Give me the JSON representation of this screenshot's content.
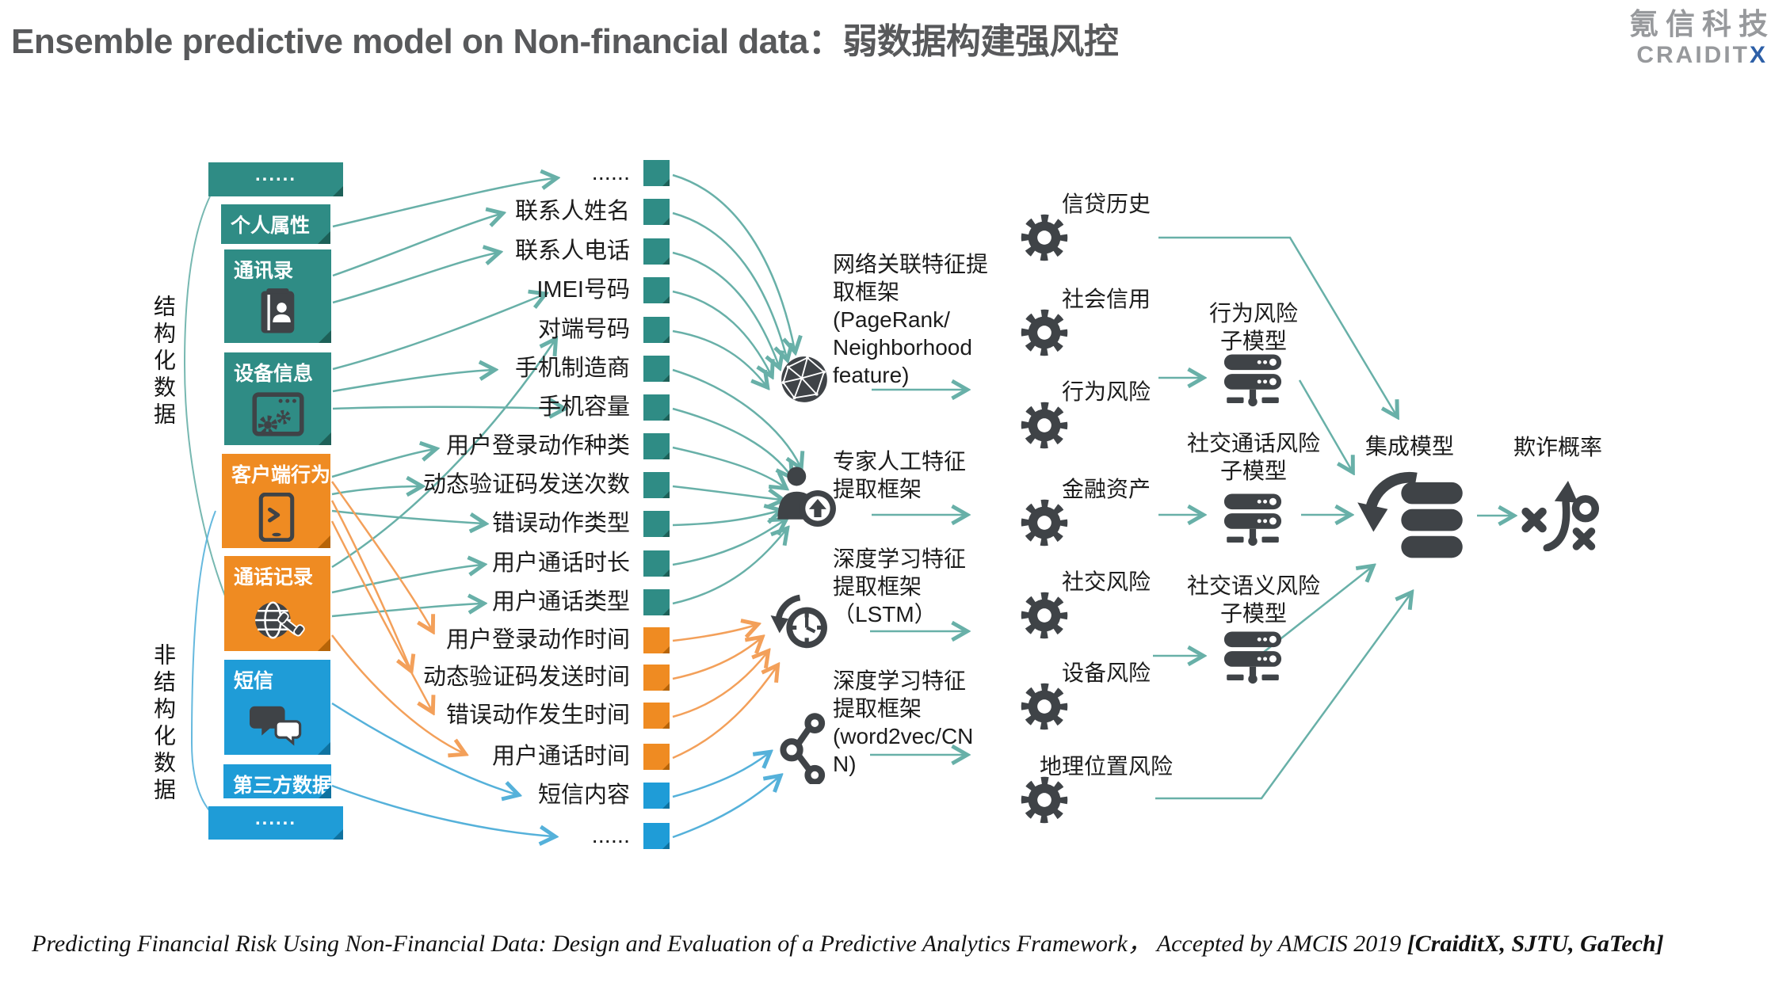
{
  "palette": {
    "teal": "#2f8c85",
    "orange": "#ef8b22",
    "blue": "#1f9cd7",
    "tealArrow": "#68b0a8",
    "orangeArrow": "#f3a05a",
    "blueArrow": "#55b1da",
    "icon_dark": "#3f4347",
    "title_gray": "#58595b",
    "logo_gray": "#97999c",
    "logo_blue": "#2d5fa7"
  },
  "header": {
    "title": "Ensemble predictive model on Non-financial data：弱数据构建强风控",
    "logo_cn": "氪信科技",
    "logo_en_prefix": "CRAIDIT",
    "logo_en_x": "X"
  },
  "groups": [
    {
      "label": "结构化数据"
    },
    {
      "label": "非结构化数据"
    }
  ],
  "sources": [
    {
      "label": "......",
      "color": "teal",
      "icon": null
    },
    {
      "label": "个人属性",
      "color": "teal",
      "icon": null
    },
    {
      "label": "通讯录",
      "color": "teal",
      "icon": "address-book"
    },
    {
      "label": "设备信息",
      "color": "teal",
      "icon": "device-window"
    },
    {
      "label": "客户端行为",
      "color": "orange",
      "icon": "tablet"
    },
    {
      "label": "通话记录",
      "color": "orange",
      "icon": "globe-phone"
    },
    {
      "label": "短信",
      "color": "blue",
      "icon": "chat"
    },
    {
      "label": "第三方数据",
      "color": "blue",
      "icon": null
    },
    {
      "label": "......",
      "color": "blue",
      "icon": null
    }
  ],
  "features": [
    {
      "label": "......",
      "color": "teal"
    },
    {
      "label": "联系人姓名",
      "color": "teal"
    },
    {
      "label": "联系人电话",
      "color": "teal"
    },
    {
      "label": "IMEI号码",
      "color": "teal"
    },
    {
      "label": "对端号码",
      "color": "teal"
    },
    {
      "label": "手机制造商",
      "color": "teal"
    },
    {
      "label": "手机容量",
      "color": "teal"
    },
    {
      "label": "用户登录动作种类",
      "color": "teal"
    },
    {
      "label": "动态验证码发送次数",
      "color": "teal"
    },
    {
      "label": "错误动作类型",
      "color": "teal"
    },
    {
      "label": "用户通话时长",
      "color": "teal"
    },
    {
      "label": "用户通话类型",
      "color": "teal"
    },
    {
      "label": "用户登录动作时间",
      "color": "orange"
    },
    {
      "label": "动态验证码发送时间",
      "color": "orange"
    },
    {
      "label": "错误动作发生时间",
      "color": "orange"
    },
    {
      "label": "用户通话时间",
      "color": "orange"
    },
    {
      "label": "短信内容",
      "color": "blue"
    },
    {
      "label": "......",
      "color": "blue"
    }
  ],
  "frameworks": [
    {
      "lines": [
        "网络关联特征提",
        "取框架",
        "(PageRank/",
        "Neighborhood",
        "feature)"
      ],
      "icon": "network-globe"
    },
    {
      "lines": [
        "专家人工特征",
        "提取框架"
      ],
      "icon": "expert-person"
    },
    {
      "lines": [
        "深度学习特征",
        "提取框架",
        "（LSTM）"
      ],
      "icon": "history-clock"
    },
    {
      "lines": [
        "深度学习特征",
        "提取框架",
        "(word2vec/CN",
        "N)"
      ],
      "icon": "share-graph"
    }
  ],
  "risk_factors": [
    {
      "label": "信贷历史"
    },
    {
      "label": "社会信用"
    },
    {
      "label": "行为风险"
    },
    {
      "label": "金融资产"
    },
    {
      "label": "社交风险"
    },
    {
      "label": "设备风险"
    },
    {
      "label": "地理位置风险"
    }
  ],
  "submodels": [
    {
      "lines": [
        "行为风险",
        "子模型"
      ]
    },
    {
      "lines": [
        "社交通话风险",
        "子模型"
      ]
    },
    {
      "lines": [
        "社交语义风险",
        "子模型"
      ]
    }
  ],
  "ensemble": {
    "label": "集成模型"
  },
  "output": {
    "label": "欺诈概率"
  },
  "footer": {
    "citation": "Predicting Financial Risk Using Non-Financial Data: Design and Evaluation of a Predictive Analytics Framework，  Accepted by AMCIS 2019 ",
    "citation_bold": "[CraiditX, SJTU, GaTech]"
  }
}
